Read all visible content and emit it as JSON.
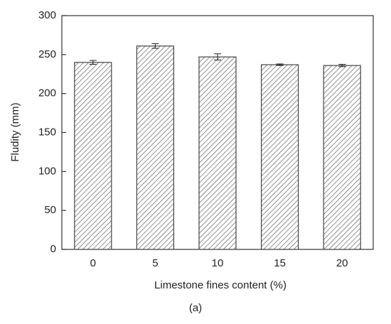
{
  "chart_data": {
    "type": "bar",
    "x_label": "Limestone fines content (%)",
    "y_label": "Fludity (mm)",
    "caption": "(a)",
    "categories": [
      "0",
      "5",
      "10",
      "15",
      "20"
    ],
    "values": [
      240,
      261,
      247,
      237,
      236
    ],
    "errors": [
      2.5,
      3,
      4,
      1,
      1.5
    ],
    "color": "#444444",
    "ylim": [
      0,
      300
    ],
    "yticks": [
      0,
      50,
      100,
      150,
      200,
      250,
      300
    ],
    "grid": false
  }
}
